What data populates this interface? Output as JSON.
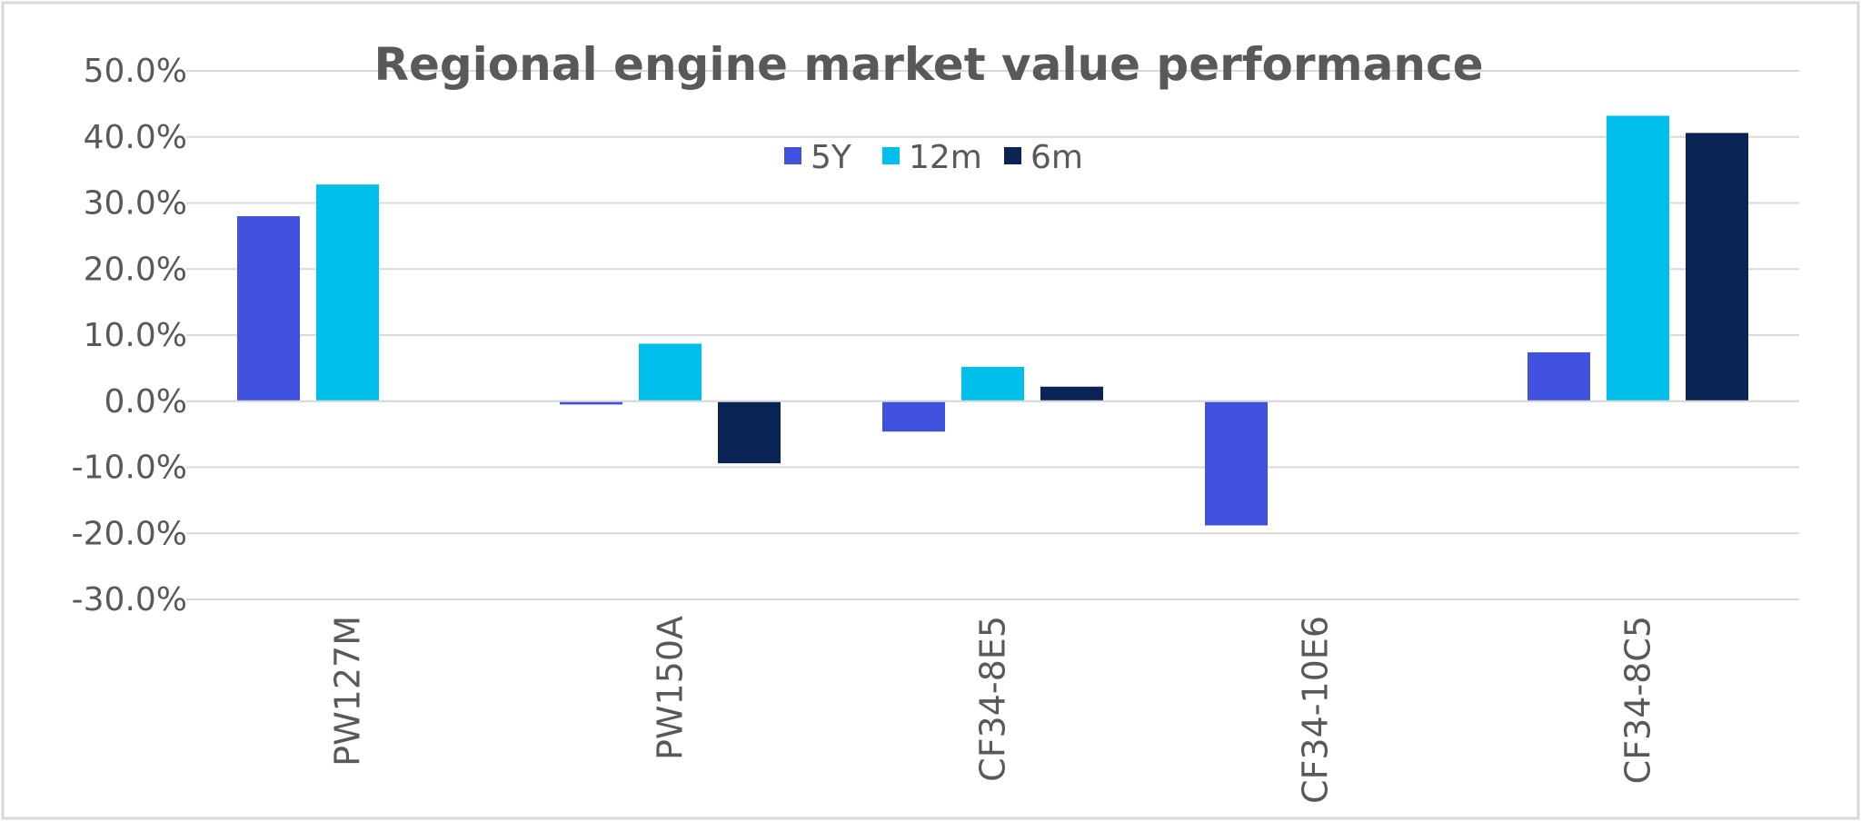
{
  "chart_data": {
    "type": "bar",
    "title": "Regional engine market value performance",
    "xlabel": "",
    "ylabel": "",
    "categories": [
      "PW127M",
      "PW150A",
      "CF34-8E5",
      "CF34-10E6",
      "CF34-8C5"
    ],
    "series": [
      {
        "name": "5Y",
        "color": "#4051DE",
        "values": [
          0.28,
          -0.005,
          -0.046,
          -0.188,
          0.074
        ]
      },
      {
        "name": "12m",
        "color": "#00BFEA",
        "values": [
          0.328,
          0.087,
          0.052,
          null,
          0.432
        ]
      },
      {
        "name": "6m",
        "color": "#0A2456",
        "values": [
          null,
          -0.094,
          0.022,
          null,
          0.406
        ]
      }
    ],
    "ylim": [
      -0.3,
      0.5
    ],
    "yticks": [
      -0.3,
      -0.2,
      -0.1,
      0.0,
      0.1,
      0.2,
      0.3,
      0.4,
      0.5
    ],
    "ytick_labels": [
      "-30.0%",
      "-20.0%",
      "-10.0%",
      "0.0%",
      "10.0%",
      "20.0%",
      "30.0%",
      "40.0%",
      "50.0%"
    ],
    "grid": true,
    "legend_position": "top-center",
    "category_label_rotation": "vertical"
  },
  "colors": {
    "frame_border": "#D9D9D9",
    "gridline": "#D9D9D9",
    "text": "#595959"
  }
}
